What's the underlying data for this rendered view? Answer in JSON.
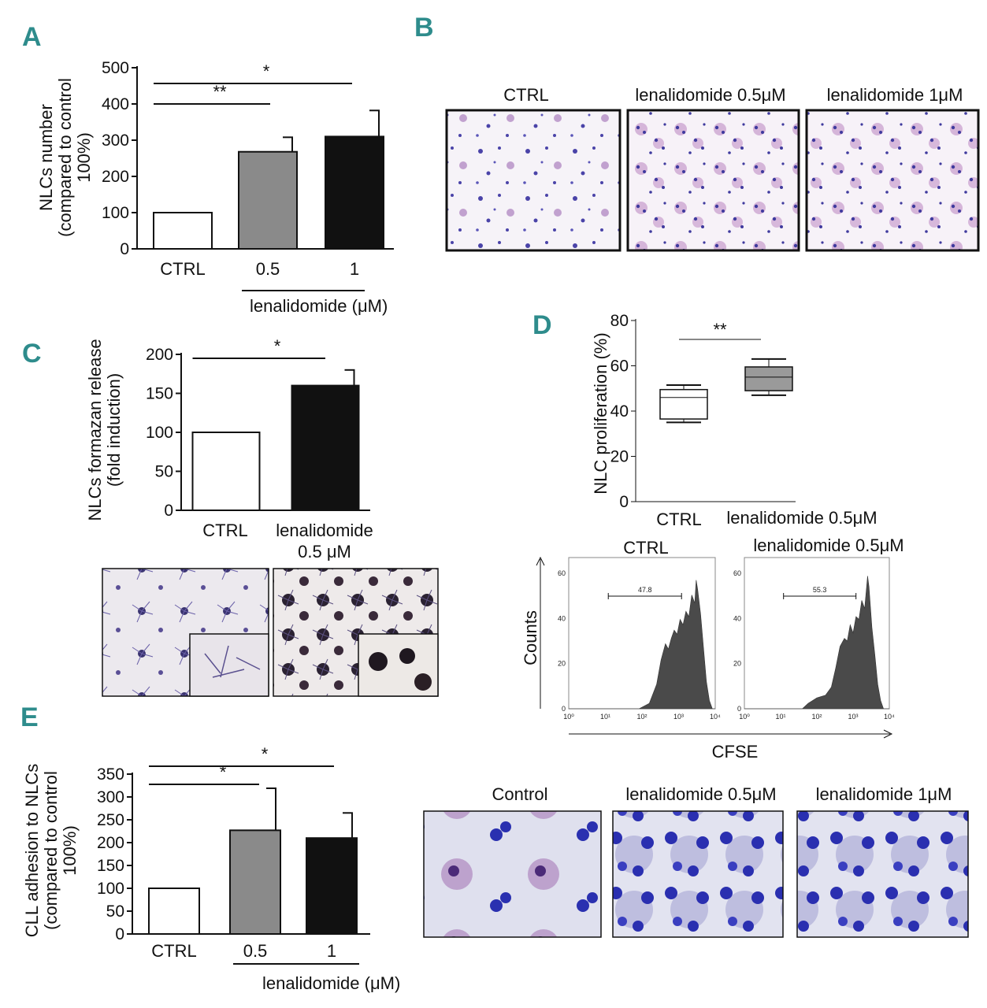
{
  "panel_labels": [
    "A",
    "B",
    "C",
    "D",
    "E"
  ],
  "colors": {
    "panel_label": "#2e8c8c",
    "ctrl_bar": "#ffffff",
    "low_dose_bar": "#8a8a8a",
    "high_dose_bar": "#111111",
    "histogram": "#4a4a4a",
    "box_fill": "#9a9a9a"
  },
  "chart_data": [
    {
      "panel": "A",
      "type": "bar",
      "ylabel_lines": [
        "NLCs number",
        "(compared to control",
        "100%)"
      ],
      "categories": [
        "CTRL",
        "0.5",
        "1"
      ],
      "group_label": "lenalidomide (μM)",
      "values": [
        100,
        268,
        310
      ],
      "errors": [
        0,
        40,
        72
      ],
      "ylim": [
        0,
        500
      ],
      "yticks": [
        0,
        100,
        200,
        300,
        400,
        500
      ],
      "significance": [
        {
          "from": 0,
          "to": 1,
          "label": "**"
        },
        {
          "from": 0,
          "to": 2,
          "label": "*"
        }
      ]
    },
    {
      "panel": "C",
      "type": "bar",
      "ylabel_lines": [
        "NLCs formazan release",
        "(fold induction)"
      ],
      "categories": [
        "CTRL",
        "lenalidomide\n0.5 μM"
      ],
      "values": [
        100,
        160
      ],
      "errors": [
        0,
        20
      ],
      "ylim": [
        0,
        200
      ],
      "yticks": [
        0,
        50,
        100,
        150,
        200
      ],
      "significance": [
        {
          "from": 0,
          "to": 1,
          "label": "*"
        }
      ]
    },
    {
      "panel": "D",
      "type": "box",
      "ylabel": "NLC proliferation (%)",
      "categories": [
        "CTRL",
        "lenalidomide 0.5μM"
      ],
      "boxes": [
        {
          "min": 35,
          "q1": 36.5,
          "median": 46,
          "q3": 49.5,
          "max": 51.5
        },
        {
          "min": 47,
          "q1": 49,
          "median": 55,
          "q3": 59.5,
          "max": 63
        }
      ],
      "ylim": [
        0,
        80
      ],
      "yticks": [
        0,
        20,
        40,
        60,
        80
      ],
      "significance": [
        {
          "from": 0,
          "to": 1,
          "label": "**"
        }
      ]
    },
    {
      "panel": "D",
      "type": "area",
      "subtype": "histogram",
      "titles": [
        "CTRL",
        "lenalidomide 0.5μM"
      ],
      "gate_values": [
        "47.8",
        "55.3"
      ],
      "ylabel": "Counts",
      "xlabel": "CFSE",
      "yticks": [
        "0",
        "20",
        "40",
        "60"
      ],
      "xticks": [
        "10⁰",
        "10¹",
        "10²",
        "10³",
        "10⁴"
      ]
    },
    {
      "panel": "E",
      "type": "bar",
      "ylabel_lines": [
        "CLL adhesion to NLCs",
        "(compared to control",
        "100%)"
      ],
      "categories": [
        "CTRL",
        "0.5",
        "1"
      ],
      "group_label": "lenalidomide (μM)",
      "values": [
        100,
        227,
        210
      ],
      "errors": [
        0,
        92,
        55
      ],
      "ylim": [
        0,
        350
      ],
      "yticks": [
        0,
        50,
        100,
        150,
        200,
        250,
        300,
        350
      ],
      "significance": [
        {
          "from": 0,
          "to": 1,
          "label": "*"
        },
        {
          "from": 0,
          "to": 2,
          "label": "*"
        }
      ]
    }
  ],
  "image_panels": {
    "B": [
      "CTRL",
      "lenalidomide 0.5μM",
      "lenalidomide 1μM"
    ],
    "E": [
      "Control",
      "lenalidomide 0.5μM",
      "lenalidomide 1μM"
    ]
  }
}
